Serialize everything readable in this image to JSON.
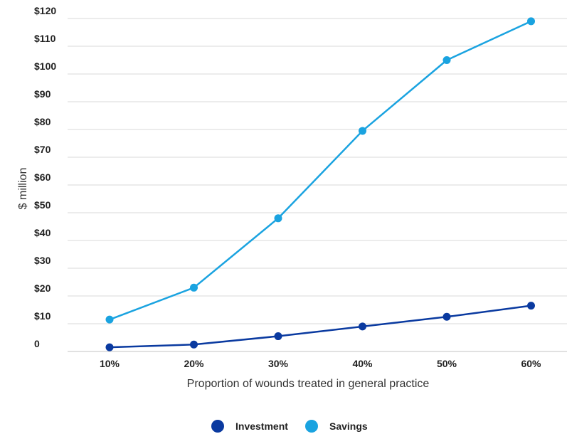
{
  "chart_data": {
    "type": "line",
    "title": "",
    "xlabel": "Proportion of wounds treated in general practice",
    "ylabel": "$ million",
    "categories": [
      "10%",
      "20%",
      "30%",
      "40%",
      "50%",
      "60%"
    ],
    "y_ticks": [
      {
        "value": 0,
        "label": "0"
      },
      {
        "value": 10,
        "label": "$10"
      },
      {
        "value": 20,
        "label": "$20"
      },
      {
        "value": 30,
        "label": "$30"
      },
      {
        "value": 40,
        "label": "$40"
      },
      {
        "value": 50,
        "label": "$50"
      },
      {
        "value": 60,
        "label": "$60"
      },
      {
        "value": 70,
        "label": "$70"
      },
      {
        "value": 80,
        "label": "$80"
      },
      {
        "value": 90,
        "label": "$90"
      },
      {
        "value": 100,
        "label": "$100"
      },
      {
        "value": 110,
        "label": "$110"
      },
      {
        "value": 120,
        "label": "$120"
      }
    ],
    "ylim": [
      0,
      120
    ],
    "grid": true,
    "legend_position": "bottom-center",
    "series": [
      {
        "name": "Investment",
        "color": "#0a3aa0",
        "values": [
          1.5,
          2.5,
          5.5,
          9,
          12.5,
          16.5
        ]
      },
      {
        "name": "Savings",
        "color": "#1aa3e0",
        "values": [
          11.5,
          23,
          48,
          79.5,
          105,
          119
        ]
      }
    ]
  }
}
